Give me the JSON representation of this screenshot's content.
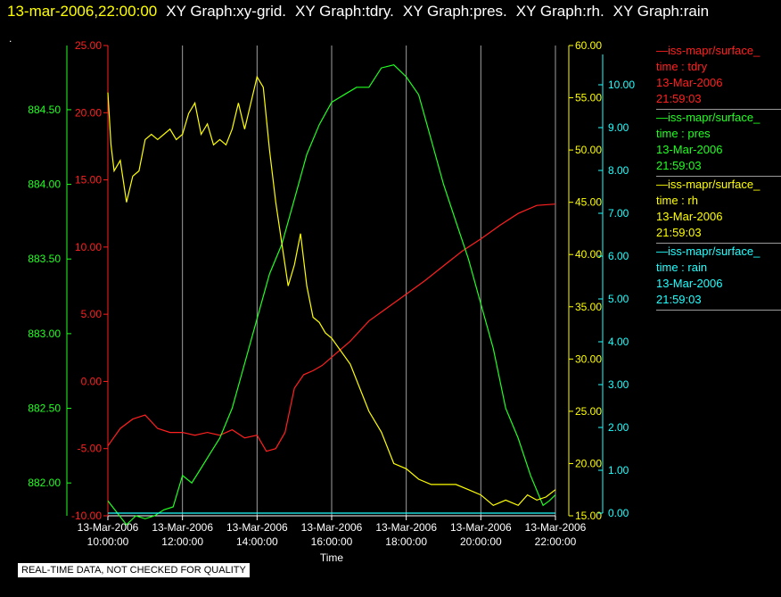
{
  "header": {
    "timestamp": "13-mar-2006,22:00:00",
    "titles": [
      "XY Graph:xy-grid.",
      "XY Graph:tdry.",
      "XY Graph:pres.",
      "XY Graph:rh.",
      "XY Graph:rain"
    ]
  },
  "dot": ".",
  "disclaimer": "REAL-TIME DATA, NOT CHECKED FOR QUALITY",
  "colors": {
    "tdry": "#ff2020",
    "pres": "#20ff20",
    "rh": "#ffff00",
    "rain": "#20ffff",
    "grid": "#a0a0a0",
    "axis_text": "#ffffff"
  },
  "legend": [
    {
      "line": "—iss-mapr/surface_",
      "var": "time : tdry",
      "date": "13-Mar-2006",
      "time": "21:59:03",
      "color": "#ff2020"
    },
    {
      "line": "—iss-mapr/surface_",
      "var": "time : pres",
      "date": "13-Mar-2006",
      "time": "21:59:03",
      "color": "#20ff20"
    },
    {
      "line": "—iss-mapr/surface_",
      "var": "time : rh",
      "date": "13-Mar-2006",
      "time": "21:59:03",
      "color": "#ffff00"
    },
    {
      "line": "—iss-mapr/surface_",
      "var": "time : rain",
      "date": "13-Mar-2006",
      "time": "21:59:03",
      "color": "#20ffff"
    }
  ],
  "chart_data": {
    "type": "line",
    "xlabel": "Time",
    "x_ticks": [
      {
        "date": "13-Mar-2006",
        "time": "10:00:00"
      },
      {
        "date": "13-Mar-2006",
        "time": "12:00:00"
      },
      {
        "date": "13-Mar-2006",
        "time": "14:00:00"
      },
      {
        "date": "13-Mar-2006",
        "time": "16:00:00"
      },
      {
        "date": "13-Mar-2006",
        "time": "18:00:00"
      },
      {
        "date": "13-Mar-2006",
        "time": "20:00:00"
      },
      {
        "date": "13-Mar-2006",
        "time": "22:00:00"
      }
    ],
    "xlim": [
      "10:00",
      "22:00"
    ],
    "grid": "vertical",
    "axes": {
      "tdry": {
        "ylim": [
          -10,
          25
        ],
        "ticks": [
          "25.00",
          "20.00",
          "15.00",
          "10.00",
          "5.00",
          "0.00",
          "-5.00",
          "-10.00"
        ],
        "side": "left",
        "color": "#ff2020"
      },
      "pres": {
        "ylim": [
          881.78,
          884.93
        ],
        "ticks": [
          "884.50",
          "884.00",
          "883.50",
          "883.00",
          "882.50",
          "882.00"
        ],
        "tick_values": [
          884.5,
          884.0,
          883.5,
          883.0,
          882.5,
          882.0
        ],
        "side": "left",
        "color": "#20ff20"
      },
      "rh": {
        "ylim": [
          15,
          60
        ],
        "ticks": [
          "60.00",
          "55.00",
          "50.00",
          "45.00",
          "40.00",
          "35.00",
          "30.00",
          "25.00",
          "20.00",
          "15.00"
        ],
        "side": "right",
        "color": "#ffff00"
      },
      "rain": {
        "ylim": [
          0,
          10.5
        ],
        "ticks": [
          "10.00",
          "9.00",
          "8.00",
          "7.00",
          "6.00",
          "5.00",
          "4.00",
          "3.00",
          "2.00",
          "1.00",
          "0.00"
        ],
        "tick_values": [
          10,
          9,
          8,
          7,
          6,
          5,
          4,
          3,
          2,
          1,
          0
        ],
        "side": "right",
        "color": "#20ffff"
      }
    },
    "series": [
      {
        "key": "tdry",
        "x": [
          "10:00",
          "10:20",
          "10:40",
          "11:00",
          "11:20",
          "11:40",
          "12:00",
          "12:20",
          "12:40",
          "13:00",
          "13:20",
          "13:40",
          "14:00",
          "14:15",
          "14:30",
          "14:45",
          "15:00",
          "15:15",
          "15:30",
          "15:45",
          "16:00",
          "16:30",
          "17:00",
          "17:30",
          "18:00",
          "18:30",
          "19:00",
          "19:30",
          "20:00",
          "20:30",
          "21:00",
          "21:30",
          "22:00"
        ],
        "y": [
          -4.8,
          -3.5,
          -2.8,
          -2.5,
          -3.5,
          -3.8,
          -3.8,
          -4.0,
          -3.8,
          -4.0,
          -3.6,
          -4.2,
          -4.0,
          -5.2,
          -5.0,
          -3.8,
          -0.5,
          0.5,
          0.8,
          1.2,
          1.8,
          3.0,
          4.5,
          5.5,
          6.5,
          7.5,
          8.6,
          9.7,
          10.6,
          11.6,
          12.5,
          13.1,
          13.2
        ]
      },
      {
        "key": "pres",
        "x": [
          "10:00",
          "10:15",
          "10:30",
          "10:45",
          "11:00",
          "11:15",
          "11:30",
          "11:45",
          "12:00",
          "12:15",
          "12:30",
          "12:45",
          "13:00",
          "13:20",
          "13:40",
          "14:00",
          "14:20",
          "14:40",
          "15:00",
          "15:20",
          "15:40",
          "16:00",
          "16:20",
          "16:40",
          "17:00",
          "17:20",
          "17:40",
          "18:00",
          "18:20",
          "18:40",
          "19:00",
          "19:20",
          "19:40",
          "20:00",
          "20:20",
          "20:40",
          "21:00",
          "21:20",
          "21:40",
          "21:50",
          "22:00"
        ],
        "y": [
          881.88,
          881.8,
          881.72,
          881.78,
          881.76,
          881.78,
          881.82,
          881.84,
          882.05,
          882.0,
          882.1,
          882.2,
          882.3,
          882.5,
          882.8,
          883.1,
          883.4,
          883.6,
          883.9,
          884.2,
          884.4,
          884.55,
          884.6,
          884.65,
          884.65,
          884.78,
          884.8,
          884.72,
          884.6,
          884.3,
          884.0,
          883.75,
          883.5,
          883.2,
          882.9,
          882.5,
          882.3,
          882.05,
          881.85,
          881.88,
          881.92
        ]
      },
      {
        "key": "rh",
        "x": [
          "10:00",
          "10:05",
          "10:10",
          "10:20",
          "10:30",
          "10:40",
          "10:50",
          "11:00",
          "11:10",
          "11:20",
          "11:30",
          "11:40",
          "11:50",
          "12:00",
          "12:10",
          "12:20",
          "12:30",
          "12:40",
          "12:50",
          "13:00",
          "13:10",
          "13:20",
          "13:30",
          "13:40",
          "13:50",
          "14:00",
          "14:10",
          "14:20",
          "14:30",
          "14:40",
          "14:50",
          "15:00",
          "15:10",
          "15:20",
          "15:30",
          "15:40",
          "15:50",
          "16:00",
          "16:30",
          "17:00",
          "17:20",
          "17:40",
          "18:00",
          "18:20",
          "18:40",
          "19:00",
          "19:20",
          "19:40",
          "20:00",
          "20:20",
          "20:40",
          "21:00",
          "21:15",
          "21:30",
          "21:45",
          "22:00"
        ],
        "y": [
          55.5,
          50.5,
          48.0,
          49.0,
          45.0,
          47.5,
          48.0,
          51.0,
          51.5,
          51.0,
          51.5,
          52.0,
          51.0,
          51.5,
          53.5,
          54.5,
          51.5,
          52.5,
          50.5,
          51.0,
          50.5,
          52.0,
          54.5,
          52.0,
          54.5,
          57.0,
          56.0,
          50.0,
          45.0,
          41.0,
          37.0,
          39.0,
          42.0,
          37.0,
          34.0,
          33.5,
          32.5,
          32.0,
          29.5,
          25.0,
          23.0,
          20.0,
          19.5,
          18.5,
          18.0,
          18.0,
          18.0,
          17.5,
          17.0,
          16.0,
          16.5,
          16.0,
          17.0,
          16.5,
          16.8,
          17.5
        ]
      },
      {
        "key": "rain",
        "x": [
          "10:00",
          "22:00"
        ],
        "y": [
          0.0,
          0.0
        ]
      }
    ]
  }
}
